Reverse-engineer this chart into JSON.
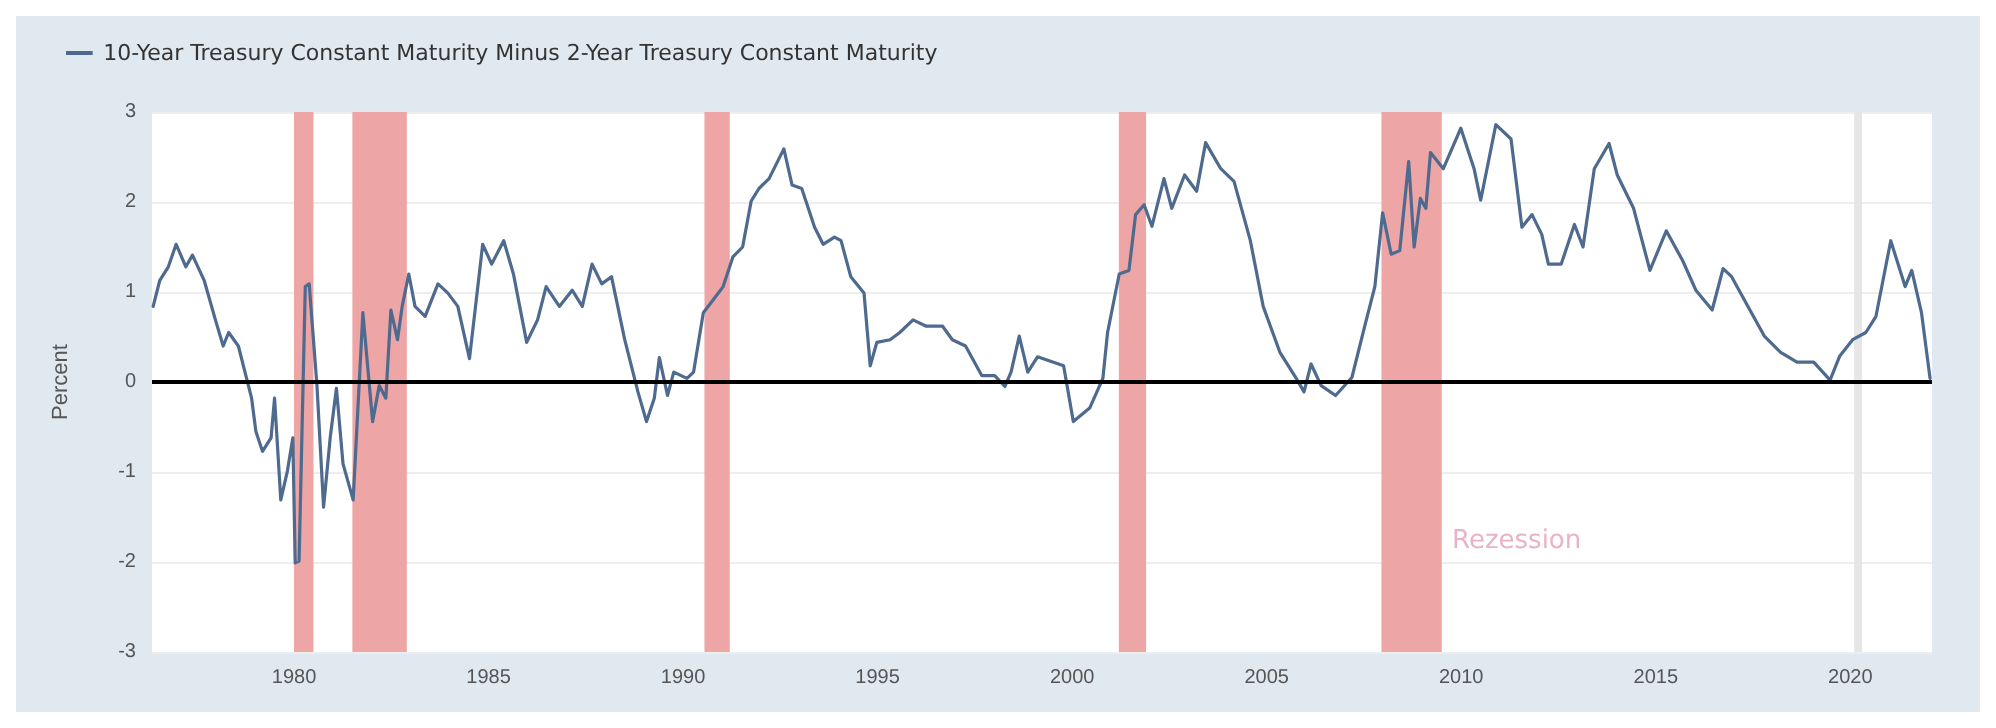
{
  "chart_data": {
    "type": "line",
    "ylabel": "Percent",
    "x": [
      1976.38,
      1976.55,
      1976.77,
      1976.97,
      1977.22,
      1977.39,
      1977.69,
      1977.98,
      1978.18,
      1978.32,
      1978.57,
      1978.74,
      1978.91,
      1979.02,
      1979.19,
      1979.41,
      1979.5,
      1979.66,
      1979.83,
      1979.97,
      1980.03,
      1980.13,
      1980.29,
      1980.39,
      1980.59,
      1980.76,
      1980.93,
      1981.09,
      1981.26,
      1981.52,
      1981.77,
      1982.02,
      1982.19,
      1982.36,
      1982.49,
      1982.66,
      1982.78,
      1982.95,
      1983.11,
      1983.37,
      1983.7,
      1983.95,
      1984.21,
      1984.51,
      1984.85,
      1985.08,
      1985.39,
      1985.64,
      1985.98,
      1986.26,
      1986.48,
      1986.82,
      1987.15,
      1987.41,
      1987.66,
      1987.91,
      1988.16,
      1988.5,
      1988.84,
      1989.06,
      1989.26,
      1989.39,
      1989.6,
      1989.76,
      1990.1,
      1990.27,
      1990.52,
      1990.77,
      1991.03,
      1991.28,
      1991.53,
      1991.75,
      1991.95,
      1992.21,
      1992.59,
      1992.8,
      1993.05,
      1993.38,
      1993.6,
      1993.89,
      1994.06,
      1994.31,
      1994.65,
      1994.81,
      1994.98,
      1995.32,
      1995.57,
      1995.91,
      1996.25,
      1996.67,
      1996.92,
      1997.26,
      1997.68,
      1998.01,
      1998.27,
      1998.43,
      1998.64,
      1998.86,
      1999.11,
      1999.78,
      2000.03,
      2000.45,
      2000.79,
      2000.91,
      2001.21,
      2001.46,
      2001.63,
      2001.85,
      2002.05,
      2002.36,
      2002.56,
      2002.89,
      2003.2,
      2003.43,
      2003.82,
      2004.16,
      2004.58,
      2004.91,
      2005.34,
      2005.76,
      2005.96,
      2006.14,
      2006.4,
      2006.77,
      2007.19,
      2007.52,
      2007.78,
      2007.98,
      2008.2,
      2008.42,
      2008.65,
      2008.79,
      2008.95,
      2009.09,
      2009.21,
      2009.54,
      2009.99,
      2010.33,
      2010.5,
      2010.89,
      2011.28,
      2011.56,
      2011.82,
      2012.07,
      2012.24,
      2012.57,
      2012.91,
      2013.13,
      2013.42,
      2013.8,
      2014.01,
      2014.43,
      2014.85,
      2015.27,
      2015.69,
      2016.03,
      2016.45,
      2016.73,
      2016.95,
      2017.37,
      2017.79,
      2018.21,
      2018.63,
      2019.06,
      2019.48,
      2019.73,
      2020.06,
      2020.4,
      2020.66,
      2021.04,
      2021.41,
      2021.58,
      2021.83,
      2022.05
    ],
    "series": [
      {
        "name": "10-Year Treasury Constant Maturity Minus 2-Year Treasury Constant Maturity",
        "color": "#4e6a8e",
        "values": [
          0.84,
          1.13,
          1.28,
          1.53,
          1.28,
          1.41,
          1.13,
          0.69,
          0.4,
          0.55,
          0.4,
          0.11,
          -0.18,
          -0.55,
          -0.77,
          -0.62,
          -0.18,
          -1.31,
          -0.99,
          -0.62,
          -2.01,
          -1.99,
          1.06,
          1.09,
          -0.04,
          -1.39,
          -0.62,
          -0.07,
          -0.91,
          -1.31,
          0.77,
          -0.44,
          -0.04,
          -0.18,
          0.8,
          0.47,
          0.84,
          1.2,
          0.84,
          0.73,
          1.09,
          0.99,
          0.84,
          0.26,
          1.53,
          1.31,
          1.57,
          1.2,
          0.44,
          0.69,
          1.06,
          0.84,
          1.02,
          0.84,
          1.31,
          1.09,
          1.17,
          0.47,
          -0.11,
          -0.44,
          -0.18,
          0.27,
          -0.15,
          0.11,
          0.04,
          0.11,
          0.77,
          0.91,
          1.06,
          1.39,
          1.5,
          2.01,
          2.15,
          2.26,
          2.59,
          2.19,
          2.15,
          1.72,
          1.53,
          1.61,
          1.57,
          1.17,
          0.99,
          0.18,
          0.44,
          0.47,
          0.55,
          0.69,
          0.62,
          0.62,
          0.47,
          0.4,
          0.07,
          0.07,
          -0.05,
          0.11,
          0.51,
          0.11,
          0.28,
          0.18,
          -0.44,
          -0.29,
          0.04,
          0.55,
          1.2,
          1.24,
          1.86,
          1.97,
          1.73,
          2.26,
          1.93,
          2.3,
          2.12,
          2.66,
          2.37,
          2.23,
          1.57,
          0.84,
          0.33,
          0.04,
          -0.11,
          0.2,
          -0.04,
          -0.15,
          0.05,
          0.62,
          1.06,
          1.88,
          1.42,
          1.46,
          2.45,
          1.5,
          2.04,
          1.93,
          2.55,
          2.37,
          2.82,
          2.37,
          2.02,
          2.86,
          2.7,
          1.72,
          1.86,
          1.64,
          1.31,
          1.31,
          1.75,
          1.5,
          2.37,
          2.65,
          2.3,
          1.93,
          1.24,
          1.68,
          1.35,
          1.02,
          0.8,
          1.26,
          1.17,
          0.84,
          0.51,
          0.33,
          0.22,
          0.22,
          0.02,
          0.29,
          0.47,
          0.55,
          0.73,
          1.57,
          1.06,
          1.24,
          0.77,
          0.04
        ]
      }
    ],
    "xlim": [
      1976.35,
      2022.1
    ],
    "xticks": [
      1980,
      1985,
      1990,
      1995,
      2000,
      2005,
      2010,
      2015,
      2020
    ],
    "ylim": [
      -3,
      3
    ],
    "yticks": [
      -3,
      -2,
      -1,
      0,
      1,
      2,
      3
    ],
    "grid": "y",
    "legend": "top left",
    "marker": "none",
    "line_style": "solid",
    "ref_lines": [
      {
        "axis": "y",
        "value": 0,
        "color": "#000000"
      }
    ],
    "bands": [
      {
        "axis": "x",
        "from": 1980.0,
        "to": 1980.5,
        "color": "#eea5a5"
      },
      {
        "axis": "x",
        "from": 1981.5,
        "to": 1982.9,
        "color": "#eea5a5"
      },
      {
        "axis": "x",
        "from": 1990.55,
        "to": 1991.2,
        "color": "#eea5a5"
      },
      {
        "axis": "x",
        "from": 2001.2,
        "to": 2001.9,
        "color": "#eea5a5"
      },
      {
        "axis": "x",
        "from": 2007.95,
        "to": 2009.5,
        "color": "#eea5a5"
      },
      {
        "axis": "x",
        "from": 2020.1,
        "to": 2020.3,
        "color": "#e6e6e6"
      }
    ],
    "annotations": [
      "Rezession"
    ]
  }
}
